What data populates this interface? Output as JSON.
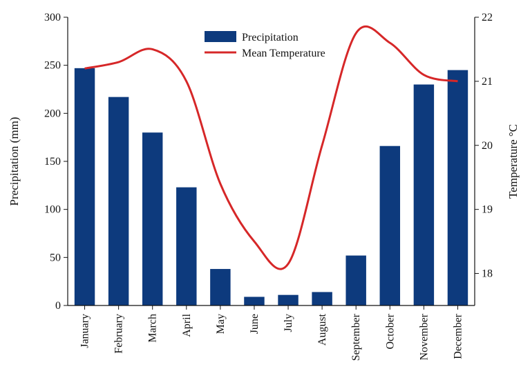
{
  "chart_data": {
    "type": "bar",
    "categories": [
      "January",
      "February",
      "March",
      "April",
      "May",
      "June",
      "July",
      "August",
      "September",
      "October",
      "November",
      "December"
    ],
    "series": [
      {
        "name": "Precipitation",
        "type": "bar",
        "axis": "left",
        "color": "#0d3a7d",
        "values": [
          247,
          217,
          180,
          123,
          38,
          9,
          11,
          14,
          52,
          166,
          230,
          245
        ]
      },
      {
        "name": "Mean Temperature",
        "type": "line",
        "axis": "right",
        "color": "#d62728",
        "values": [
          21.2,
          21.3,
          21.5,
          21.0,
          19.4,
          18.5,
          18.15,
          20.0,
          21.75,
          21.6,
          21.1,
          21.0
        ]
      }
    ],
    "ylabel": "Precipitation (mm)",
    "ylim": [
      0,
      300
    ],
    "yticks": [
      0,
      50,
      100,
      150,
      200,
      250,
      300
    ],
    "y2label": "Temperature °C",
    "y2lim": [
      17.5,
      22
    ],
    "y2ticks": [
      18,
      19,
      20,
      21,
      22
    ],
    "legend": {
      "position": "top-center",
      "entries": [
        "Precipitation",
        "Mean Temperature"
      ]
    },
    "grid": false
  }
}
